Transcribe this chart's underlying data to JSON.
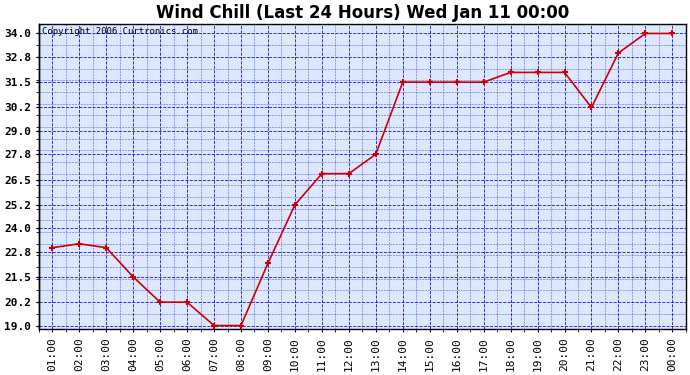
{
  "title": "Wind Chill (Last 24 Hours) Wed Jan 11 00:00",
  "copyright": "Copyright 2006 Curtronics.com",
  "x_labels": [
    "01:00",
    "02:00",
    "03:00",
    "04:00",
    "05:00",
    "06:00",
    "07:00",
    "08:00",
    "09:00",
    "10:00",
    "11:00",
    "12:00",
    "13:00",
    "14:00",
    "15:00",
    "16:00",
    "17:00",
    "18:00",
    "19:00",
    "20:00",
    "21:00",
    "22:00",
    "23:00",
    "00:00"
  ],
  "y_values": [
    23.0,
    23.2,
    23.0,
    21.5,
    20.2,
    20.2,
    19.0,
    19.0,
    22.2,
    25.2,
    26.8,
    26.8,
    27.8,
    31.5,
    31.5,
    31.5,
    31.5,
    32.0,
    32.0,
    32.0,
    30.2,
    33.0,
    34.0,
    34.0
  ],
  "line_color": "#cc0000",
  "marker_color": "#cc0000",
  "grid_color": "#0000bb",
  "background_color": "#ffffff",
  "plot_bg_color": "#dde8ff",
  "title_fontsize": 12,
  "tick_fontsize": 8,
  "ylim": [
    19.0,
    34.0
  ],
  "yticks": [
    19.0,
    20.2,
    21.5,
    22.8,
    24.0,
    25.2,
    26.5,
    27.8,
    29.0,
    30.2,
    31.5,
    32.8,
    34.0
  ]
}
